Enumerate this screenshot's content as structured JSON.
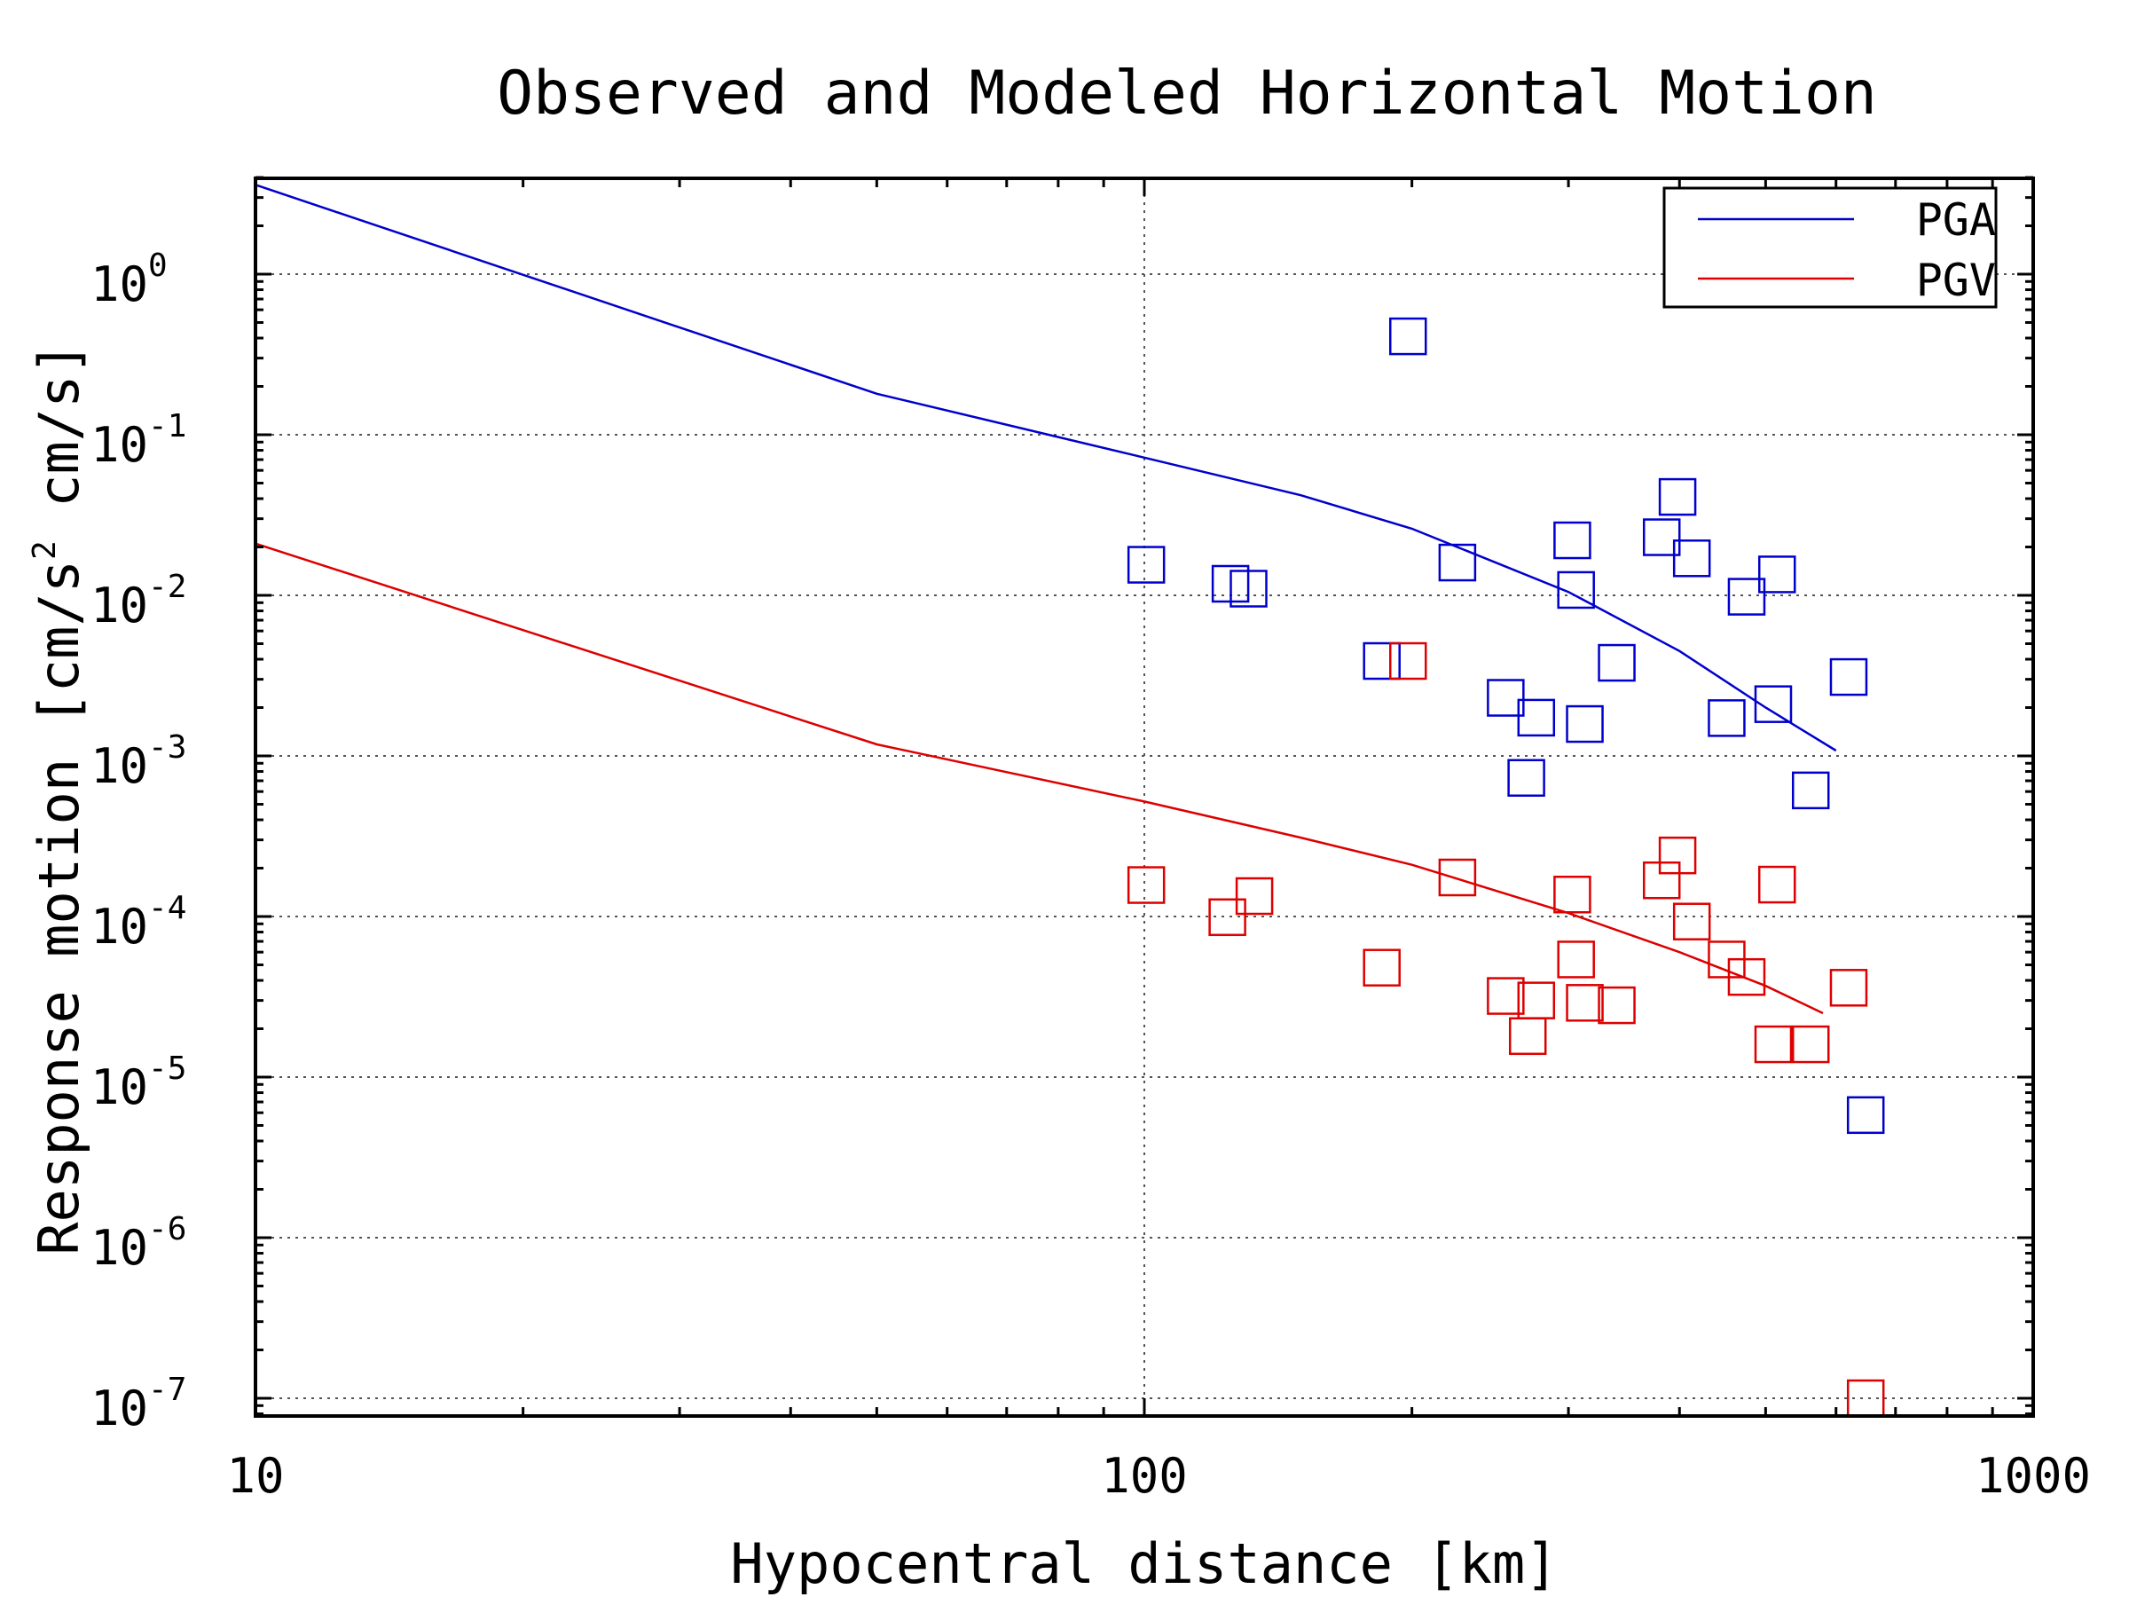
{
  "chart_data": {
    "type": "scatter",
    "title": "Observed and Modeled Horizontal Motion",
    "xlabel": "Hypocentral distance [km]",
    "ylabel_parts": [
      "Response motion [cm/s",
      "2",
      " cm/s]"
    ],
    "xscale": "log",
    "yscale": "log",
    "xlim": [
      10,
      1000
    ],
    "ylim": [
      8e-08,
      4
    ],
    "x_ticks": [
      {
        "value": 10,
        "label": "10"
      },
      {
        "value": 100,
        "label": "100"
      },
      {
        "value": 1000,
        "label": "1000"
      }
    ],
    "y_ticks": [
      {
        "value": 1,
        "base": "10",
        "exp": "0"
      },
      {
        "value": 0.1,
        "base": "10",
        "exp": "-1"
      },
      {
        "value": 0.01,
        "base": "10",
        "exp": "-2"
      },
      {
        "value": 0.001,
        "base": "10",
        "exp": "-3"
      },
      {
        "value": 0.0001,
        "base": "10",
        "exp": "-4"
      },
      {
        "value": 1e-05,
        "base": "10",
        "exp": "-5"
      },
      {
        "value": 1e-06,
        "base": "10",
        "exp": "-6"
      },
      {
        "value": 1e-07,
        "base": "10",
        "exp": "-7"
      }
    ],
    "grid": true,
    "legend_position": "top-right",
    "series": [
      {
        "name": "PGA",
        "color": "#0000cc",
        "model": [
          [
            10,
            3.6
          ],
          [
            50,
            0.18
          ],
          [
            100,
            0.072
          ],
          [
            150,
            0.042
          ],
          [
            200,
            0.026
          ],
          [
            300,
            0.0105
          ],
          [
            400,
            0.0045
          ],
          [
            500,
            0.002
          ],
          [
            600,
            0.00108
          ]
        ],
        "observed": [
          [
            100.5,
            0.0155
          ],
          [
            125,
            0.0118
          ],
          [
            131,
            0.011
          ],
          [
            185,
            0.0039
          ],
          [
            198,
            0.41
          ],
          [
            225,
            0.016
          ],
          [
            255,
            0.0023
          ],
          [
            276,
            0.00173
          ],
          [
            269,
            0.00073
          ],
          [
            303,
            0.022
          ],
          [
            306,
            0.0108
          ],
          [
            313,
            0.00158
          ],
          [
            340,
            0.0038
          ],
          [
            382,
            0.023
          ],
          [
            398,
            0.041
          ],
          [
            413,
            0.017
          ],
          [
            452,
            0.00172
          ],
          [
            476,
            0.0098
          ],
          [
            510,
            0.0021
          ],
          [
            515,
            0.0135
          ],
          [
            562,
            0.00061
          ],
          [
            620,
            0.0031
          ],
          [
            648,
            5.8e-06
          ]
        ]
      },
      {
        "name": "PGV",
        "color": "#dd0000",
        "model": [
          [
            10,
            0.021
          ],
          [
            50,
            0.00118
          ],
          [
            100,
            0.00052
          ],
          [
            150,
            0.00031
          ],
          [
            200,
            0.00021
          ],
          [
            300,
            0.000105
          ],
          [
            400,
            6e-05
          ],
          [
            500,
            3.7e-05
          ],
          [
            580,
            2.5e-05
          ]
        ],
        "observed": [
          [
            100.5,
            0.000157
          ],
          [
            124,
            9.9e-05
          ],
          [
            133,
            0.000134
          ],
          [
            185,
            4.8e-05
          ],
          [
            198,
            0.0039
          ],
          [
            225,
            0.000175
          ],
          [
            255,
            3.2e-05
          ],
          [
            270,
            1.8e-05
          ],
          [
            276,
            3e-05
          ],
          [
            303,
            0.000137
          ],
          [
            306,
            5.4e-05
          ],
          [
            313,
            2.9e-05
          ],
          [
            340,
            2.8e-05
          ],
          [
            382,
            0.000168
          ],
          [
            398,
            0.00024
          ],
          [
            413,
            9.3e-05
          ],
          [
            452,
            5.4e-05
          ],
          [
            476,
            4.2e-05
          ],
          [
            510,
            1.6e-05
          ],
          [
            515,
            0.000158
          ],
          [
            562,
            1.6e-05
          ],
          [
            620,
            3.6e-05
          ],
          [
            648,
            1e-07
          ]
        ]
      }
    ]
  }
}
